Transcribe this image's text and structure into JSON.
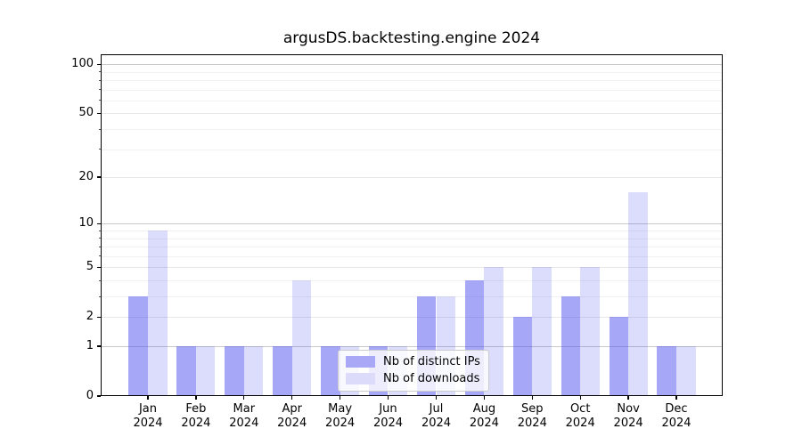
{
  "chart_data": {
    "type": "bar",
    "title": "argusDS.backtesting.engine 2024",
    "x_tick_year": "2024",
    "categories": [
      "Jan",
      "Feb",
      "Mar",
      "Apr",
      "May",
      "Jun",
      "Jul",
      "Aug",
      "Sep",
      "Oct",
      "Nov",
      "Dec"
    ],
    "series": [
      {
        "name": "Nb of distinct IPs",
        "color_hex": "#a8a8f7",
        "color_rgba": "rgba(80,80,240,0.5)",
        "values": [
          3,
          1,
          1,
          1,
          1,
          1,
          3,
          4,
          2,
          3,
          2,
          1
        ]
      },
      {
        "name": "Nb of downloads",
        "color_hex": "#dcdcfa",
        "color_rgba": "rgba(80,80,240,0.2)",
        "values": [
          9,
          1,
          1,
          4,
          1,
          1,
          3,
          5,
          5,
          5,
          16,
          1
        ]
      }
    ],
    "y_axis": {
      "scale": "log10(1+v)",
      "ticks": [
        0,
        1,
        2,
        5,
        10,
        20,
        50,
        100
      ],
      "decade_ticks": [
        1,
        10,
        100
      ],
      "minor_gridlines": [
        3,
        4,
        6,
        7,
        8,
        9,
        30,
        40,
        60,
        70,
        80,
        90
      ],
      "range": [
        0,
        115
      ]
    },
    "grid": true,
    "legend": {
      "position": "lower-center",
      "entries": [
        "Nb of distinct IPs",
        "Nb of downloads"
      ]
    }
  }
}
